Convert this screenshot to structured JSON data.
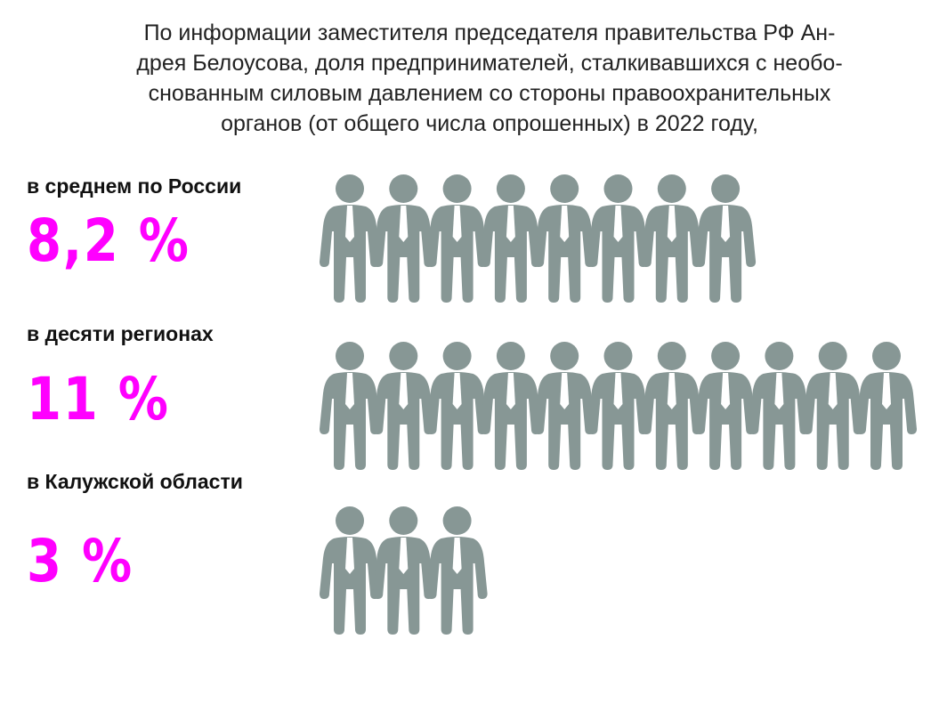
{
  "title": "По информации заместителя председателя правительства РФ Ан-дрея Белоусова, доля предпринимателей, сталкивавшихся с необо-снованным силовым давлением со стороны правоохранительных органов (от общего числа опрошенных) в 2022 году,",
  "title_lines": [
    "По информации заместителя председателя правительства РФ Ан-",
    "дрея Белоусова, доля предпринимателей, сталкивавшихся с необо-",
    "снованным силовым давлением со стороны правоохранительных",
    "органов (от общего числа опрошенных) в 2022 году,"
  ],
  "chart_data": {
    "type": "pictograph",
    "icon": "businessman-icon",
    "icon_color": "#879795",
    "value_color": "#ff00ff",
    "unit": "%",
    "items": [
      {
        "label": "в среднем по России",
        "value_text": "8,2 %",
        "value": 8.2,
        "icons": 8
      },
      {
        "label": "в десяти регионах",
        "value_text": "11 %",
        "value": 11,
        "icons": 11
      },
      {
        "label": "в Калужской области",
        "value_text": "3 %",
        "value": 3,
        "icons": 3
      }
    ]
  }
}
